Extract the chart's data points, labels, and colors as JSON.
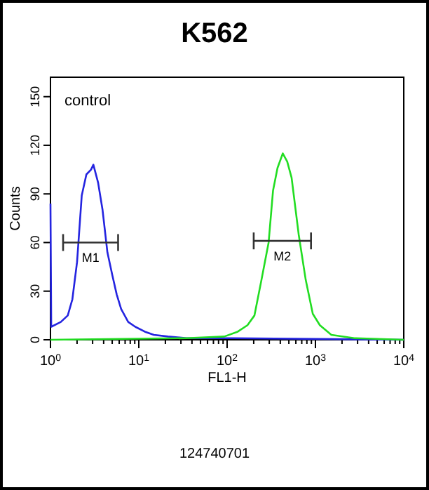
{
  "chart_data": {
    "type": "line",
    "title": "K562",
    "xlabel": "FL1-H",
    "ylabel": "Counts",
    "log": "x",
    "xlim": [
      1,
      10000
    ],
    "ylim": [
      0,
      162
    ],
    "xticks": [
      {
        "value": 1,
        "label": "10$^{0}$"
      },
      {
        "value": 2,
        "label": null
      },
      {
        "value": 3,
        "label": null
      },
      {
        "value": 4,
        "label": null
      },
      {
        "value": 5,
        "label": null
      },
      {
        "value": 6,
        "label": null
      },
      {
        "value": 7,
        "label": null
      },
      {
        "value": 8,
        "label": null
      },
      {
        "value": 9,
        "label": null
      },
      {
        "value": 10,
        "label": "10$^{1}$"
      },
      {
        "value": 20,
        "label": null
      },
      {
        "value": 30,
        "label": null
      },
      {
        "value": 40,
        "label": null
      },
      {
        "value": 50,
        "label": null
      },
      {
        "value": 60,
        "label": null
      },
      {
        "value": 70,
        "label": null
      },
      {
        "value": 80,
        "label": null
      },
      {
        "value": 90,
        "label": null
      },
      {
        "value": 100,
        "label": "10$^{2}$"
      },
      {
        "value": 200,
        "label": null
      },
      {
        "value": 300,
        "label": null
      },
      {
        "value": 400,
        "label": null
      },
      {
        "value": 500,
        "label": null
      },
      {
        "value": 600,
        "label": null
      },
      {
        "value": 700,
        "label": null
      },
      {
        "value": 800,
        "label": null
      },
      {
        "value": 900,
        "label": null
      },
      {
        "value": 1000,
        "label": "10$^{3}$"
      },
      {
        "value": 2000,
        "label": null
      },
      {
        "value": 3000,
        "label": null
      },
      {
        "value": 4000,
        "label": null
      },
      {
        "value": 5000,
        "label": null
      },
      {
        "value": 6000,
        "label": null
      },
      {
        "value": 7000,
        "label": null
      },
      {
        "value": 8000,
        "label": null
      },
      {
        "value": 9000,
        "label": null
      },
      {
        "value": 10000,
        "label": "10$^{4}$"
      }
    ],
    "yticks": [
      0,
      30,
      60,
      90,
      120,
      150
    ],
    "grid": false,
    "marker": "none",
    "line_style": "solid",
    "series": [
      {
        "color": "#2424e0",
        "x": [
          1,
          1.02,
          1.31,
          1.57,
          1.77,
          2.0,
          2.26,
          2.55,
          2.88,
          3.06,
          3.46,
          3.89,
          4.41,
          5.01,
          5.62,
          6.31,
          7.59,
          9.12,
          11.7,
          14.8,
          21.4,
          34.7,
          117,
          10000
        ],
        "values": [
          84,
          8,
          11,
          15,
          25,
          48,
          89,
          102,
          105,
          108,
          97,
          80,
          54,
          40,
          28,
          19,
          11,
          8,
          5,
          3,
          2,
          1,
          1,
          0
        ]
      },
      {
        "color": "#22dd22",
        "x": [
          1,
          34.7,
          93,
          132,
          170,
          204,
          245,
          295,
          331,
          372,
          427,
          479,
          537,
          646,
          776,
          933,
          1122,
          1514,
          2754,
          10000
        ],
        "values": [
          0,
          1,
          2,
          5,
          9,
          15,
          37,
          60,
          92,
          106,
          115,
          110,
          100,
          65,
          37,
          16,
          9,
          3,
          1,
          0
        ]
      },
      {
        "color": "#333333",
        "x": [
          1.39,
          5.83
        ],
        "values": [
          60,
          60
        ]
      },
      {
        "color": "#333333",
        "x": [
          200,
          891
        ],
        "values": [
          61,
          61
        ]
      }
    ],
    "annotations": [
      "control",
      "M1",
      "M2",
      "124740701"
    ]
  }
}
